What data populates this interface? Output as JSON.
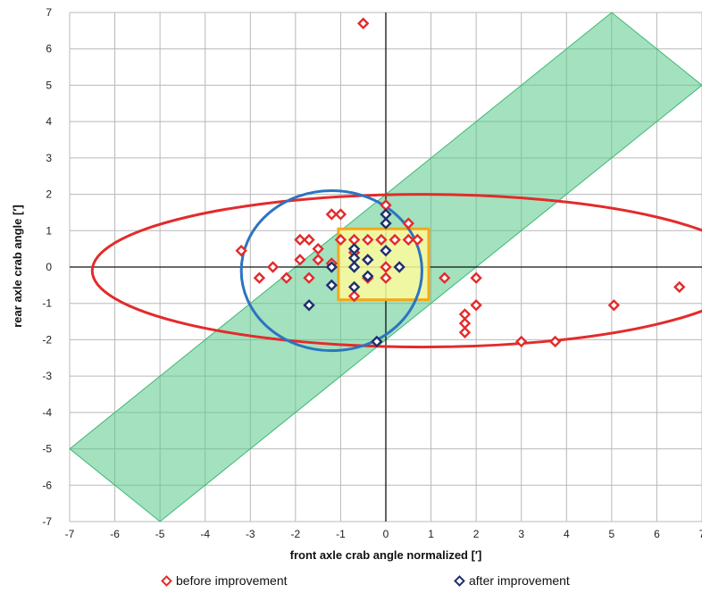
{
  "chart_data": {
    "type": "scatter",
    "title": "",
    "xlabel": "front axle crab angle normalized  [′]",
    "ylabel": "rear axle crab angle  [′]",
    "xlim": [
      -7,
      7
    ],
    "ylim": [
      -7,
      7
    ],
    "x_ticks": [
      "-7",
      "-6",
      "-5",
      "-4",
      "-3",
      "-2",
      "-1",
      "0",
      "1",
      "2",
      "3",
      "4",
      "5",
      "6",
      "7"
    ],
    "y_ticks": [
      "7",
      "6",
      "5",
      "4",
      "3",
      "2",
      "1",
      "0",
      "-1",
      "-2",
      "-3",
      "-4",
      "-5",
      "-6",
      "-7"
    ],
    "grid": true,
    "legend_position": "bottom",
    "series": [
      {
        "name": "before improvement",
        "color": "#e32b2b",
        "marker": "diamond",
        "points": [
          [
            -0.5,
            6.7
          ],
          [
            0,
            1.7
          ],
          [
            0.5,
            1.2
          ],
          [
            -1.2,
            1.45
          ],
          [
            -1.0,
            1.45
          ],
          [
            -1.9,
            0.75
          ],
          [
            -1.7,
            0.75
          ],
          [
            -1.0,
            0.75
          ],
          [
            -0.7,
            0.75
          ],
          [
            -0.4,
            0.75
          ],
          [
            -0.1,
            0.75
          ],
          [
            0.2,
            0.75
          ],
          [
            0.5,
            0.75
          ],
          [
            0.7,
            0.75
          ],
          [
            -1.5,
            0.5
          ],
          [
            -1.9,
            0.2
          ],
          [
            -1.5,
            0.2
          ],
          [
            -3.2,
            0.45
          ],
          [
            -2.5,
            0.0
          ],
          [
            -2.8,
            -0.3
          ],
          [
            -2.2,
            -0.3
          ],
          [
            -1.7,
            -0.3
          ],
          [
            -1.2,
            0.1
          ],
          [
            -0.7,
            0.4
          ],
          [
            -0.4,
            0.2
          ],
          [
            0.0,
            0.0
          ],
          [
            -0.4,
            -0.3
          ],
          [
            0.0,
            -0.3
          ],
          [
            -0.7,
            -0.8
          ],
          [
            1.3,
            -0.3
          ],
          [
            2.0,
            -0.3
          ],
          [
            2.0,
            -1.05
          ],
          [
            1.75,
            -1.3
          ],
          [
            1.75,
            -1.55
          ],
          [
            1.75,
            -1.8
          ],
          [
            3.0,
            -2.05
          ],
          [
            3.75,
            -2.05
          ],
          [
            5.05,
            -1.05
          ],
          [
            6.5,
            -0.55
          ]
        ]
      },
      {
        "name": "after improvement",
        "color": "#1f2f6e",
        "marker": "diamond",
        "points": [
          [
            0,
            1.45
          ],
          [
            0,
            1.2
          ],
          [
            -1.2,
            0.0
          ],
          [
            -1.2,
            -0.5
          ],
          [
            -1.7,
            -1.05
          ],
          [
            -0.7,
            0.5
          ],
          [
            -0.7,
            0.25
          ],
          [
            -0.7,
            0.0
          ],
          [
            -0.4,
            0.2
          ],
          [
            -0.4,
            -0.25
          ],
          [
            -0.7,
            -0.55
          ],
          [
            0.0,
            0.45
          ],
          [
            0.3,
            0.0
          ],
          [
            -0.2,
            -2.05
          ]
        ]
      }
    ],
    "annotations": [
      {
        "shape": "wedge",
        "color": "#58c98b",
        "vertices": [
          [
            5,
            7
          ],
          [
            7,
            5
          ],
          [
            -5,
            -7
          ],
          [
            -7,
            -5
          ]
        ]
      },
      {
        "shape": "ellipse",
        "color": "#e32b2b",
        "center": [
          0.8,
          -0.1
        ],
        "rx": 7.3,
        "ry": 2.1
      },
      {
        "shape": "ellipse",
        "color": "#2b75c0",
        "center": [
          -1.2,
          -0.1
        ],
        "rx": 2.0,
        "ry": 2.2
      },
      {
        "shape": "rectangle",
        "color": "#f3a81b",
        "fill": "#fdfa9d",
        "x": [
          -1.05,
          0.95
        ],
        "y": [
          -0.9,
          1.05
        ]
      }
    ]
  }
}
